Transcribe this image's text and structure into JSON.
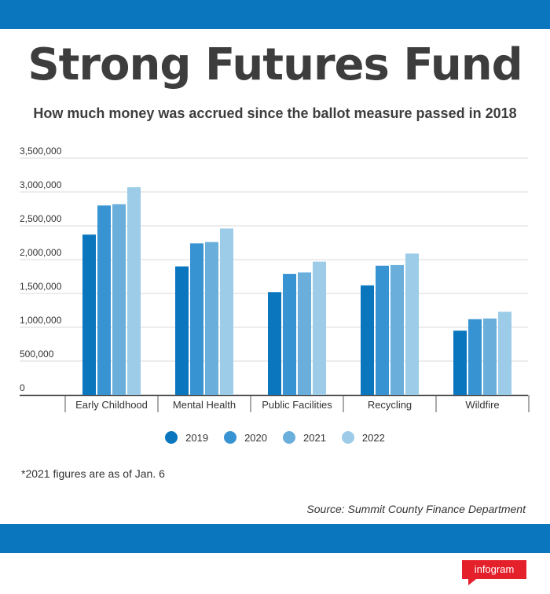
{
  "title": "Strong Futures Fund",
  "subtitle": "How much money was accrued since the ballot measure passed in 2018",
  "footnote": "*2021 figures are as of Jan. 6",
  "source": "Source: Summit County Finance Department",
  "logo_text": "infogram",
  "colors": {
    "band": "#0a76be",
    "series": [
      "#0a76be",
      "#3893d2",
      "#6aafdc",
      "#9ccce8"
    ],
    "logo": "#e4202b"
  },
  "chart_data": {
    "type": "bar",
    "categories": [
      "Early Childhood",
      "Mental Health",
      "Public Facilities",
      "Recycling",
      "Wildfire"
    ],
    "series": [
      {
        "name": "2019",
        "values": [
          2370000,
          1900000,
          1520000,
          1620000,
          950000
        ]
      },
      {
        "name": "2020",
        "values": [
          2800000,
          2240000,
          1790000,
          1910000,
          1120000
        ]
      },
      {
        "name": "2021",
        "values": [
          2820000,
          2260000,
          1810000,
          1920000,
          1130000
        ]
      },
      {
        "name": "2022",
        "values": [
          3070000,
          2460000,
          1970000,
          2090000,
          1230000
        ]
      }
    ],
    "yticks": [
      "0",
      "500,000",
      "1,000,000",
      "1,500,000",
      "2,000,000",
      "2,500,000",
      "3,000,000",
      "3,500,000"
    ],
    "ylim": [
      0,
      3500000
    ],
    "grid": true,
    "legend": "bottom"
  }
}
